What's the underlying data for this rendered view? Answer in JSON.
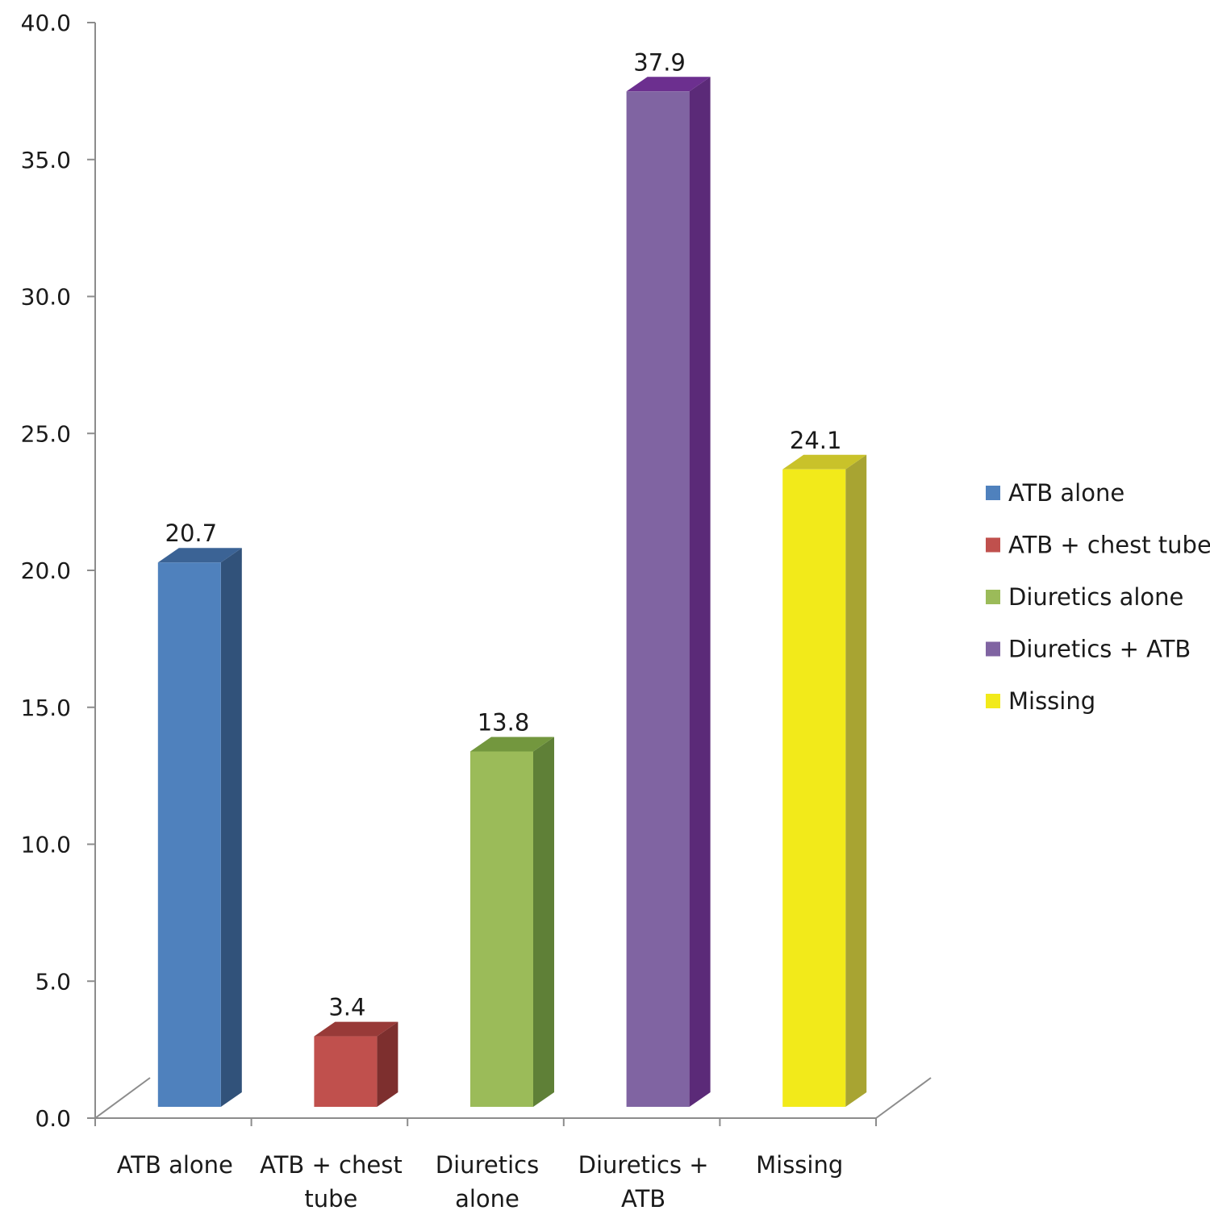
{
  "chart_data": {
    "type": "bar",
    "title": "",
    "xlabel": "",
    "ylabel": "",
    "ylim": [
      0,
      40
    ],
    "yticks": [
      "0.0",
      "5.0",
      "10.0",
      "15.0",
      "20.0",
      "25.0",
      "30.0",
      "35.0",
      "40.0"
    ],
    "grid": false,
    "legend_position": "right",
    "categories": [
      "ATB alone",
      "ATB + chest tube",
      "Diuretics alone",
      "Diuretics + ATB",
      "Missing"
    ],
    "category_labels": [
      [
        "ATB alone"
      ],
      [
        "ATB + chest",
        "tube"
      ],
      [
        "Diuretics",
        "alone"
      ],
      [
        "Diuretics +",
        "ATB"
      ],
      [
        "Missing"
      ]
    ],
    "values": [
      20.7,
      3.4,
      13.8,
      37.9,
      24.1
    ],
    "value_labels": [
      "20.7",
      "3.4",
      "13.8",
      "37.9",
      "24.1"
    ],
    "colors": [
      "#4f81bd",
      "#c0504d",
      "#9bbb59",
      "#8064a2",
      "#f2ea1a"
    ],
    "side_colors": [
      "#31527a",
      "#7d2f2e",
      "#5f8037",
      "#5b2a78",
      "#a8a432"
    ],
    "top_colors": [
      "#3b6395",
      "#983a38",
      "#73973e",
      "#6c2f8f",
      "#c9c22a"
    ],
    "legend": [
      "ATB alone",
      "ATB + chest tube",
      "Diuretics alone",
      "Diuretics + ATB",
      "Missing"
    ]
  }
}
